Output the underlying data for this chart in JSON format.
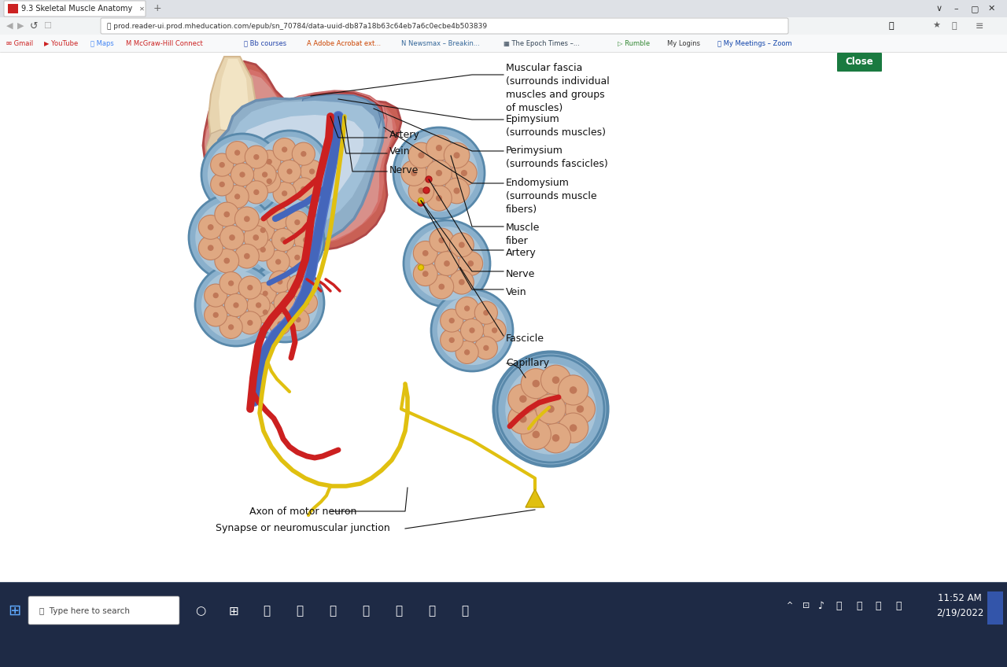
{
  "bg_color": "#ffffff",
  "tab_text": "9.3 Skeletal Muscle Anatomy",
  "url": "prod.reader-ui.prod.mheducation.com/epub/sn_70784/data-uuid-db87a18b63c64eb7a6c0ecbe4b503839",
  "status_bar_time": "11:52 AM\n2/19/2022",
  "close_button_text": "Close",
  "title_bar_bg": "#dee1e6",
  "addr_bar_bg": "#f1f3f4",
  "bookmarks_bg": "#f8f9fa",
  "taskbar_bg": "#1e2a45",
  "content_bg": "#ffffff",
  "muscle_outer_color": "#d4736a",
  "muscle_inner_color": "#c98b85",
  "tendon_color": "#d4b896",
  "bone_color": "#e8d5b0",
  "perimysium_color": "#8fa8c4",
  "perimysium_inner": "#a8bcd4",
  "fascicle_wall_color": "#7a9cbd",
  "fascicle_inner_color": "#b8cfe0",
  "fiber_color": "#dfa882",
  "fiber_edge": "#c08060",
  "artery_color": "#cc2020",
  "vein_color": "#4466cc",
  "nerve_color": "#e0c010",
  "capillary_color": "#cc2020",
  "annotation_color": "#111111",
  "annotation_fontsize": 9,
  "label_line_color": "#111111"
}
